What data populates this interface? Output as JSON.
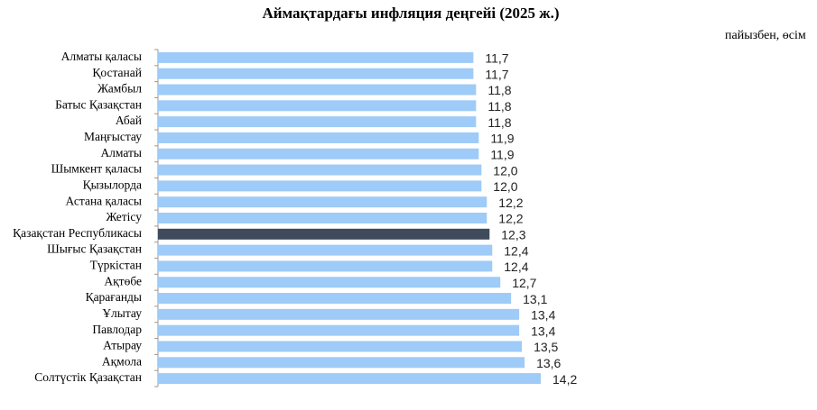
{
  "chart_data": {
    "type": "bar",
    "orientation": "horizontal",
    "title": "Аймақтардағы инфляция деңгейі (2025 ж.)",
    "subtitle": "пайызбен, өсім",
    "categories": [
      "Алматы қаласы",
      "Қостанай",
      "Жамбыл",
      "Батыс Қазақстан",
      "Абай",
      "Маңғыстау",
      "Алматы",
      "Шымкент қаласы",
      "Қызылорда",
      "Астана қаласы",
      "Жетісу",
      "Қазақстан Республикасы",
      "Шығыс Қазақстан",
      "Түркістан",
      "Ақтөбе",
      "Қарағанды",
      "Ұлытау",
      "Павлодар",
      "Атырау",
      "Ақмола",
      "Солтүстік Қазақстан"
    ],
    "values": [
      11.7,
      11.7,
      11.8,
      11.8,
      11.8,
      11.9,
      11.9,
      12.0,
      12.0,
      12.2,
      12.2,
      12.3,
      12.4,
      12.4,
      12.7,
      13.1,
      13.4,
      13.4,
      13.5,
      13.6,
      14.2
    ],
    "value_labels": [
      "11,7",
      "11,7",
      "11,8",
      "11,8",
      "11,8",
      "11,9",
      "11,9",
      "12,0",
      "12,0",
      "12,2",
      "12,2",
      "12,3",
      "12,4",
      "12,4",
      "12,7",
      "13,1",
      "13,4",
      "13,4",
      "13,5",
      "13,6",
      "14,2"
    ],
    "colors": [
      "#9ecbf7",
      "#9ecbf7",
      "#9ecbf7",
      "#9ecbf7",
      "#9ecbf7",
      "#9ecbf7",
      "#9ecbf7",
      "#9ecbf7",
      "#9ecbf7",
      "#9ecbf7",
      "#9ecbf7",
      "#3f4b5c",
      "#9ecbf7",
      "#9ecbf7",
      "#9ecbf7",
      "#9ecbf7",
      "#9ecbf7",
      "#9ecbf7",
      "#9ecbf7",
      "#9ecbf7",
      "#9ecbf7"
    ]
  }
}
